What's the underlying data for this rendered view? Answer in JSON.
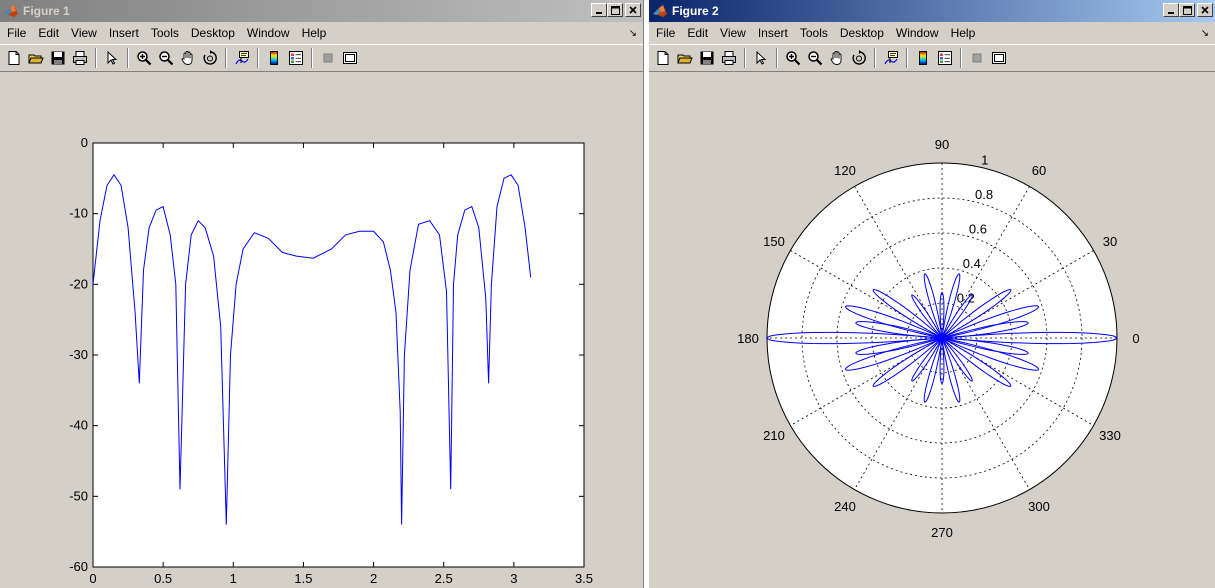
{
  "windows": [
    {
      "title": "Figure 1",
      "active": false
    },
    {
      "title": "Figure 2",
      "active": true
    }
  ],
  "menu": [
    "File",
    "Edit",
    "View",
    "Insert",
    "Tools",
    "Desktop",
    "Window",
    "Help"
  ],
  "toolbar_icons": [
    "new-figure-icon",
    "open-file-icon",
    "save-icon",
    "print-icon",
    "select-arrow-icon",
    "zoom-in-icon",
    "zoom-out-icon",
    "pan-hand-icon",
    "rotate-3d-icon",
    "data-cursor-icon",
    "colorbar-icon",
    "legend-icon",
    "hide-plot-tools-icon",
    "show-plot-tools-icon"
  ],
  "accent_colors": {
    "line": "#0000ff",
    "active_title": "#0a246a",
    "inactive_title": "#808080"
  },
  "chart_data": [
    {
      "type": "line",
      "title": "",
      "xlabel": "",
      "ylabel": "",
      "xlim": [
        0,
        3.5
      ],
      "ylim": [
        -60,
        0
      ],
      "xticks": [
        "0",
        "0.5",
        "1",
        "1.5",
        "2",
        "2.5",
        "3",
        "3.5"
      ],
      "yticks": [
        "0",
        "-10",
        "-20",
        "-30",
        "-40",
        "-50",
        "-60"
      ],
      "grid": false,
      "series": [
        {
          "color": "#0000ff",
          "x": [
            0.0,
            0.05,
            0.1,
            0.15,
            0.2,
            0.25,
            0.3,
            0.33,
            0.36,
            0.4,
            0.45,
            0.5,
            0.55,
            0.59,
            0.62,
            0.66,
            0.7,
            0.75,
            0.8,
            0.86,
            0.91,
            0.95,
            0.98,
            1.02,
            1.07,
            1.15,
            1.25,
            1.35,
            1.45,
            1.57,
            1.7,
            1.8,
            1.9,
            2.0,
            2.07,
            2.12,
            2.16,
            2.19,
            2.2,
            2.22,
            2.26,
            2.32,
            2.4,
            2.47,
            2.52,
            2.55,
            2.57,
            2.6,
            2.65,
            2.7,
            2.75,
            2.8,
            2.82,
            2.84,
            2.88,
            2.93,
            2.98,
            3.03,
            3.08,
            3.12
          ],
          "y": [
            -20,
            -11,
            -6,
            -4.5,
            -6,
            -12,
            -24,
            -34,
            -18,
            -12,
            -9.5,
            -9,
            -13,
            -20,
            -49,
            -20,
            -13,
            -11,
            -12,
            -16,
            -26,
            -54,
            -30,
            -20,
            -15,
            -12.7,
            -13.5,
            -15.5,
            -16,
            -16.3,
            -15,
            -13,
            -12.5,
            -12.5,
            -14,
            -18,
            -24,
            -38,
            -54,
            -30,
            -18,
            -11.5,
            -11,
            -13,
            -21,
            -49,
            -20,
            -13,
            -9.5,
            -9,
            -12,
            -22,
            -34,
            -20,
            -9,
            -5,
            -4.5,
            -6,
            -12,
            -19
          ]
        }
      ]
    },
    {
      "type": "polar-line",
      "title": "",
      "rlim": [
        0,
        1
      ],
      "radial_ticks": [
        "0.2",
        "0.4",
        "0.6",
        "0.8",
        "1"
      ],
      "angle_ticks": [
        "0",
        "30",
        "60",
        "90",
        "120",
        "150",
        "180",
        "210",
        "240",
        "270",
        "300",
        "330"
      ],
      "grid": true,
      "series": [
        {
          "color": "#0000ff",
          "lobes": [
            {
              "angle_deg": 0,
              "r": 1.0
            },
            {
              "angle_deg": 180,
              "r": 1.0
            },
            {
              "angle_deg": 10,
              "r": 0.5
            },
            {
              "angle_deg": -10,
              "r": 0.5
            },
            {
              "angle_deg": 170,
              "r": 0.5
            },
            {
              "angle_deg": -170,
              "r": 0.5
            },
            {
              "angle_deg": 18,
              "r": 0.58
            },
            {
              "angle_deg": -18,
              "r": 0.58
            },
            {
              "angle_deg": 162,
              "r": 0.58
            },
            {
              "angle_deg": -162,
              "r": 0.58
            },
            {
              "angle_deg": 35,
              "r": 0.48
            },
            {
              "angle_deg": -35,
              "r": 0.48
            },
            {
              "angle_deg": 145,
              "r": 0.48
            },
            {
              "angle_deg": -145,
              "r": 0.48
            },
            {
              "angle_deg": 55,
              "r": 0.3
            },
            {
              "angle_deg": -55,
              "r": 0.3
            },
            {
              "angle_deg": 125,
              "r": 0.3
            },
            {
              "angle_deg": -125,
              "r": 0.3
            },
            {
              "angle_deg": 75,
              "r": 0.38
            },
            {
              "angle_deg": -75,
              "r": 0.38
            },
            {
              "angle_deg": 105,
              "r": 0.38
            },
            {
              "angle_deg": -105,
              "r": 0.38
            },
            {
              "angle_deg": 90,
              "r": 0.26
            },
            {
              "angle_deg": -90,
              "r": 0.26
            }
          ]
        }
      ]
    }
  ]
}
